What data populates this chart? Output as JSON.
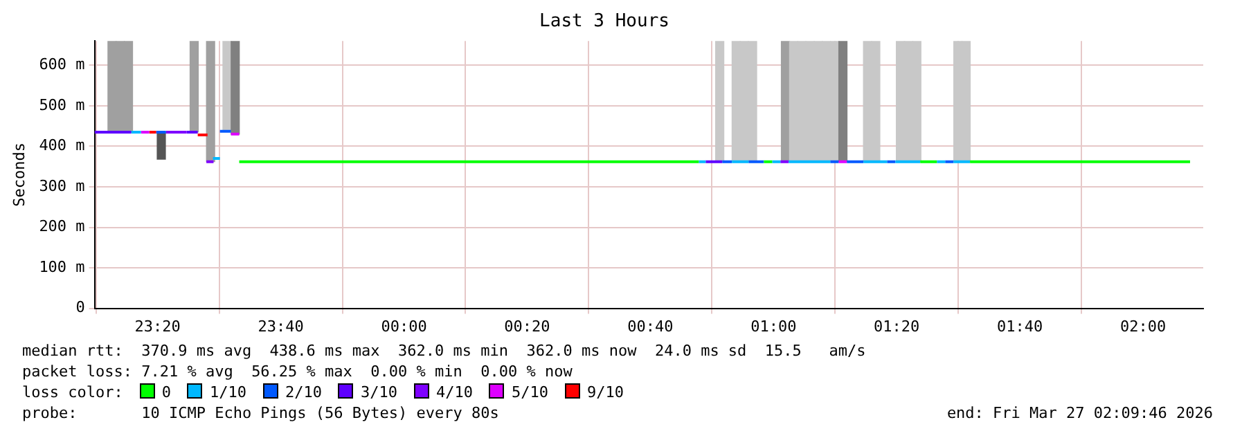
{
  "chart_data": {
    "type": "step",
    "title": "Last 3 Hours",
    "ylabel": "Seconds",
    "legend_title": "loss color:",
    "legend": "bottom",
    "grid": true,
    "xlim": [
      "2026-03-26T23:09:46",
      "2026-03-27T02:09:46"
    ],
    "xticks": [
      {
        "value": "2026-03-26T23:20",
        "label": "23:20"
      },
      {
        "value": "2026-03-26T23:40",
        "label": "23:40"
      },
      {
        "value": "2026-03-27T00:00",
        "label": "00:00"
      },
      {
        "value": "2026-03-27T00:20",
        "label": "00:20"
      },
      {
        "value": "2026-03-27T00:40",
        "label": "00:40"
      },
      {
        "value": "2026-03-27T01:00",
        "label": "01:00"
      },
      {
        "value": "2026-03-27T01:20",
        "label": "01:20"
      },
      {
        "value": "2026-03-27T01:40",
        "label": "01:40"
      },
      {
        "value": "2026-03-27T02:00",
        "label": "02:00"
      }
    ],
    "ylim": [
      0,
      660
    ],
    "yticks": [
      0,
      {
        "value": 100,
        "label": "100 m"
      },
      {
        "value": 200,
        "label": "200 m"
      },
      {
        "value": 300,
        "label": "300 m"
      },
      {
        "value": 400,
        "label": "400 m"
      },
      {
        "value": 500,
        "label": "500 m"
      },
      {
        "value": 600,
        "label": "600 m"
      }
    ],
    "annotations": [
      "median rtt:  370.9 ms avg  438.6 ms max  362.0 ms min  362.0 ms now  24.0 ms sd  15.5   am/s",
      "packet loss: 7.21 % avg  56.25 % max  0.00 % min  0.00 % now",
      "probe:       10 ICMP Echo Pings (56 Bytes) every 80s",
      "end: Fri Mar 27 02:09:46 2026"
    ],
    "series": [
      {
        "type": "bar",
        "x": [
          "2026-03-26T23:12:36",
          "2026-03-26T23:13:56",
          "2026-03-26T23:15:16",
          "2026-03-26T23:20:36",
          "2026-03-26T23:25:56",
          "2026-03-26T23:28:36",
          "2026-03-26T23:31:16",
          "2026-03-26T23:32:36",
          "2026-03-27T00:51:16",
          "2026-03-27T00:53:56",
          "2026-03-27T00:55:16",
          "2026-03-27T00:56:36",
          "2026-03-27T01:01:56",
          "2026-03-27T01:03:16",
          "2026-03-27T01:04:36",
          "2026-03-27T01:05:56",
          "2026-03-27T01:07:16",
          "2026-03-27T01:08:36",
          "2026-03-27T01:09:56",
          "2026-03-27T01:11:16",
          "2026-03-27T01:15:16",
          "2026-03-27T01:16:36",
          "2026-03-27T01:20:36",
          "2026-03-27T01:21:56",
          "2026-03-27T01:23:16",
          "2026-03-27T01:29:56",
          "2026-03-27T01:31:16"
        ],
        "base": [
          435,
          435,
          435,
          368,
          435,
          362,
          437,
          430,
          362,
          362,
          362,
          362,
          362,
          362,
          362,
          362,
          362,
          362,
          362,
          362,
          362,
          362,
          362,
          362,
          362,
          362,
          362
        ],
        "values": [
          225,
          225,
          225,
          67,
          225,
          298,
          223,
          230,
          298,
          298,
          298,
          298,
          298,
          298,
          298,
          298,
          298,
          298,
          298,
          298,
          298,
          298,
          298,
          298,
          298,
          298,
          298
        ],
        "colors": [
          "#a0a0a0",
          "#a0a0a0",
          "#a0a0a0",
          "#555555",
          "#a0a0a0",
          "#a0a0a0",
          "#c8c8c8",
          "#808080",
          "#c8c8c8",
          "#c8c8c8",
          "#c8c8c8",
          "#c8c8c8",
          "#a0a0a0",
          "#c8c8c8",
          "#c8c8c8",
          "#c8c8c8",
          "#c8c8c8",
          "#c8c8c8",
          "#c8c8c8",
          "#808080",
          "#c8c8c8",
          "#c8c8c8",
          "#c8c8c8",
          "#c8c8c8",
          "#c8c8c8",
          "#c8c8c8",
          "#c8c8c8"
        ]
      },
      {
        "name": "0",
        "color": "#00ff00",
        "x": [
          "2026-03-26T23:33:15",
          "2026-03-27T00:47:52",
          null,
          "2026-03-27T00:58:26",
          "2026-03-27T00:59:47",
          null,
          "2026-03-27T01:23:49",
          "2026-03-27T01:26:31",
          null,
          "2026-03-27T01:31:54",
          "2026-03-27T02:07:38"
        ],
        "values": [
          362,
          362,
          null,
          362,
          362,
          null,
          362,
          362,
          null,
          362,
          362
        ]
      },
      {
        "name": "1/10",
        "color": "#00b8ff",
        "x": [
          "2026-03-26T23:15:44",
          "2026-03-26T23:17:18",
          null,
          "2026-03-26T23:28:59",
          "2026-03-26T23:30:07",
          null,
          "2026-03-27T00:47:52",
          "2026-03-27T00:48:59",
          null,
          "2026-03-27T00:53:15",
          "2026-03-27T00:55:57",
          null,
          "2026-03-27T00:59:47",
          "2026-03-27T01:01:07",
          null,
          "2026-03-27T01:02:28",
          "2026-03-27T01:09:13",
          null,
          "2026-03-27T01:14:36",
          "2026-03-27T01:18:26",
          null,
          "2026-03-27T01:19:47",
          "2026-03-27T01:23:49",
          null,
          "2026-03-27T01:26:31",
          "2026-03-27T01:27:52",
          null,
          "2026-03-27T01:29:13",
          "2026-03-27T01:31:54"
        ],
        "values": [
          435,
          435,
          null,
          370,
          370,
          null,
          362,
          362,
          null,
          362,
          362,
          null,
          362,
          362,
          null,
          362,
          362,
          null,
          362,
          362,
          null,
          362,
          362,
          null,
          362,
          362,
          null,
          362,
          362
        ]
      },
      {
        "name": "2/10",
        "color": "#0059ff",
        "x": [
          "2026-03-26T23:19:47",
          "2026-03-26T23:21:21",
          null,
          "2026-03-26T23:30:07",
          "2026-03-26T23:31:54",
          null,
          "2026-03-27T00:51:41",
          "2026-03-27T00:53:15",
          null,
          "2026-03-27T00:55:57",
          "2026-03-27T00:58:26",
          null,
          "2026-03-27T01:09:13",
          "2026-03-27T01:10:34",
          null,
          "2026-03-27T01:11:55",
          "2026-03-27T01:14:36",
          null,
          "2026-03-27T01:18:26",
          "2026-03-27T01:19:47",
          null,
          "2026-03-27T01:27:52",
          "2026-03-27T01:29:13"
        ],
        "values": [
          435,
          435,
          null,
          437,
          437,
          null,
          362,
          362,
          null,
          362,
          362,
          null,
          362,
          362,
          null,
          362,
          362,
          null,
          362,
          362,
          null,
          362,
          362
        ]
      },
      {
        "name": "3/10",
        "color": "#5e00ff",
        "x": [
          "2026-03-26T23:09:46",
          "2026-03-26T23:15:44",
          null,
          "2026-03-26T23:24:43",
          "2026-03-26T23:26:31",
          null,
          "2026-03-27T00:48:59",
          "2026-03-27T00:51:41"
        ],
        "values": [
          435,
          435,
          null,
          435,
          435,
          null,
          362,
          362
        ]
      },
      {
        "name": "4/10",
        "color": "#7e00ff",
        "x": [
          "2026-03-26T23:21:21",
          "2026-03-26T23:24:43",
          null,
          "2026-03-26T23:27:55",
          "2026-03-26T23:29:05",
          null,
          "2026-03-27T01:01:07",
          "2026-03-27T01:02:28"
        ],
        "values": [
          435,
          435,
          null,
          362,
          362,
          null,
          362,
          362
        ]
      },
      {
        "name": "5/10",
        "color": "#dd00ff",
        "x": [
          "2026-03-26T23:17:18",
          "2026-03-26T23:18:39",
          null,
          "2026-03-26T23:31:54",
          "2026-03-26T23:33:15",
          null,
          "2026-03-27T01:10:34",
          "2026-03-27T01:11:55"
        ],
        "values": [
          435,
          435,
          null,
          430,
          430,
          null,
          362,
          362
        ]
      },
      {
        "name": "9/10",
        "color": "#ff0000",
        "x": [
          "2026-03-26T23:18:39",
          "2026-03-26T23:19:47",
          null,
          "2026-03-26T23:26:31",
          "2026-03-26T23:28:06"
        ],
        "values": [
          435,
          435,
          null,
          428,
          428
        ]
      }
    ]
  }
}
